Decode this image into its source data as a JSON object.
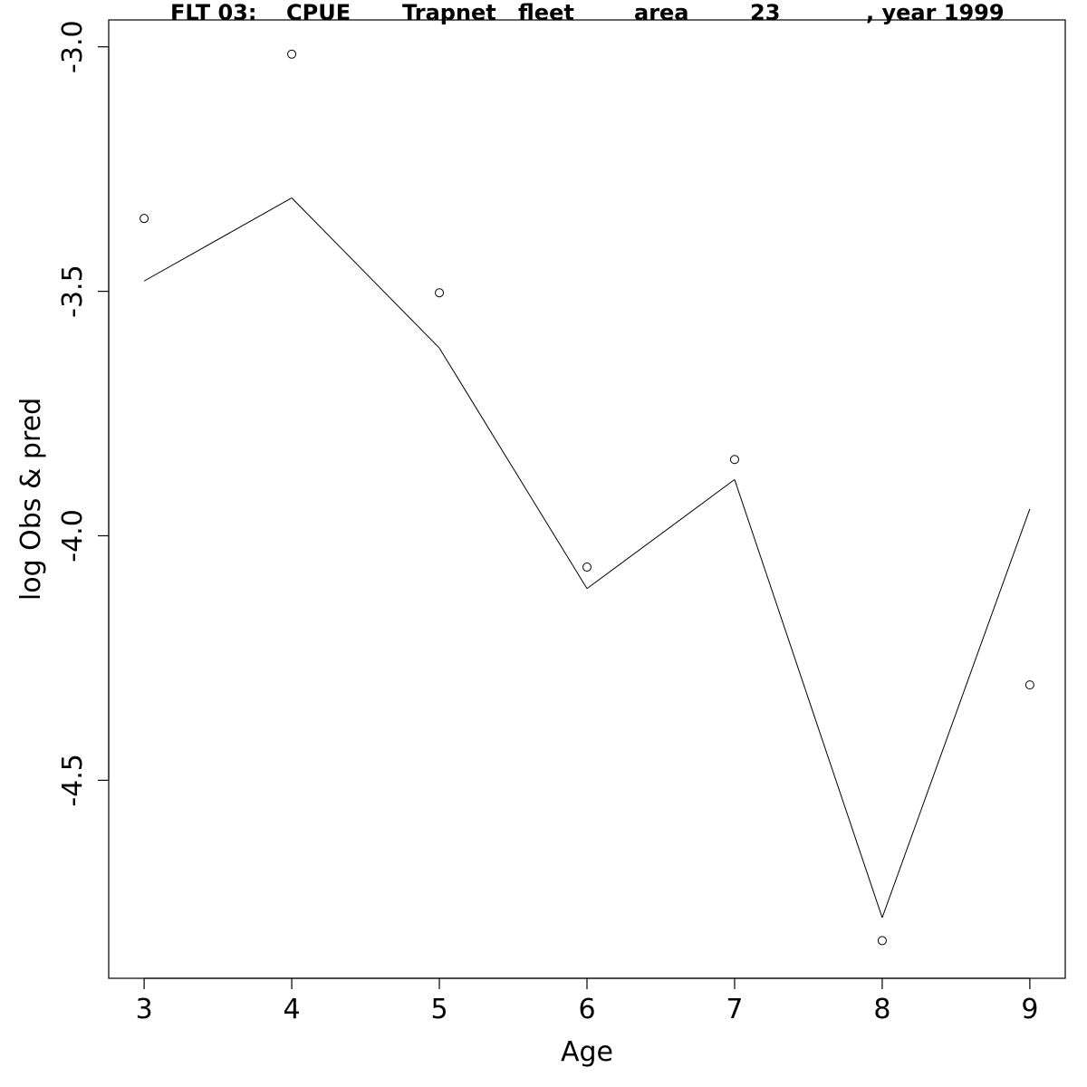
{
  "chart_data": {
    "type": "line",
    "title_parts": [
      "FLT 03:",
      "CPUE",
      "Trapnet",
      "fleet",
      "area",
      "23",
      ", year 1999"
    ],
    "xlabel": "Age",
    "ylabel": "log Obs & pred",
    "x_ticks": [
      3,
      4,
      5,
      6,
      7,
      8,
      9
    ],
    "y_ticks": [
      "-3.0",
      "-3.5",
      "-4.0",
      "-4.5"
    ],
    "xlim": [
      2.76,
      9.24
    ],
    "ylim": [
      -4.905,
      -2.945
    ],
    "grid": false,
    "series": [
      {
        "style": "points",
        "x": [
          3,
          4,
          5,
          6,
          7,
          8,
          9
        ],
        "y": [
          -3.351,
          -3.015,
          -3.503,
          -4.064,
          -3.844,
          -4.828,
          -4.305
        ]
      },
      {
        "style": "line",
        "x": [
          3,
          4,
          5,
          6,
          7,
          8,
          9
        ],
        "y": [
          -3.479,
          -3.309,
          -3.616,
          -4.108,
          -3.885,
          -4.781,
          -3.945
        ]
      }
    ]
  }
}
